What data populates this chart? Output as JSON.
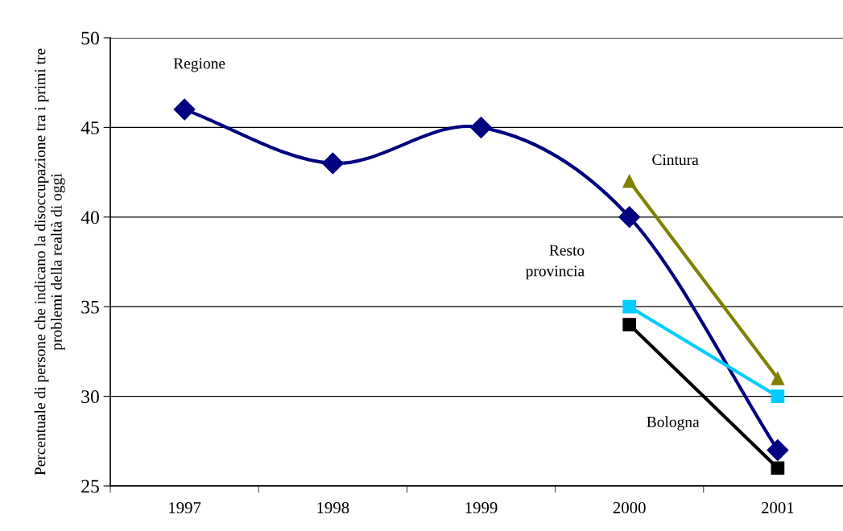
{
  "chart_data": {
    "type": "line",
    "ylabel": "Percentuale di persone che indicano la disoccupazione tra i primi tre\nproblemi della realtà di oggi",
    "categories": [
      "1997",
      "1998",
      "1999",
      "2000",
      "2001"
    ],
    "ylim": [
      25,
      50
    ],
    "yticks": [
      25,
      30,
      35,
      40,
      45,
      50
    ],
    "grid": "y",
    "legend": false,
    "series": [
      {
        "name": "Regione",
        "color": "#000080",
        "marker": "diamond",
        "values": [
          46,
          43,
          45,
          40,
          27
        ]
      },
      {
        "name": "Cintura",
        "color": "#808000",
        "marker": "triangle",
        "values": [
          null,
          null,
          null,
          42,
          31
        ]
      },
      {
        "name": "Resto\nprovincia",
        "color": "#00ccff",
        "marker": "square",
        "values": [
          null,
          null,
          null,
          35,
          30
        ]
      },
      {
        "name": "Bologna",
        "color": "#000000",
        "marker": "square",
        "values": [
          null,
          null,
          null,
          34,
          26
        ]
      }
    ]
  }
}
